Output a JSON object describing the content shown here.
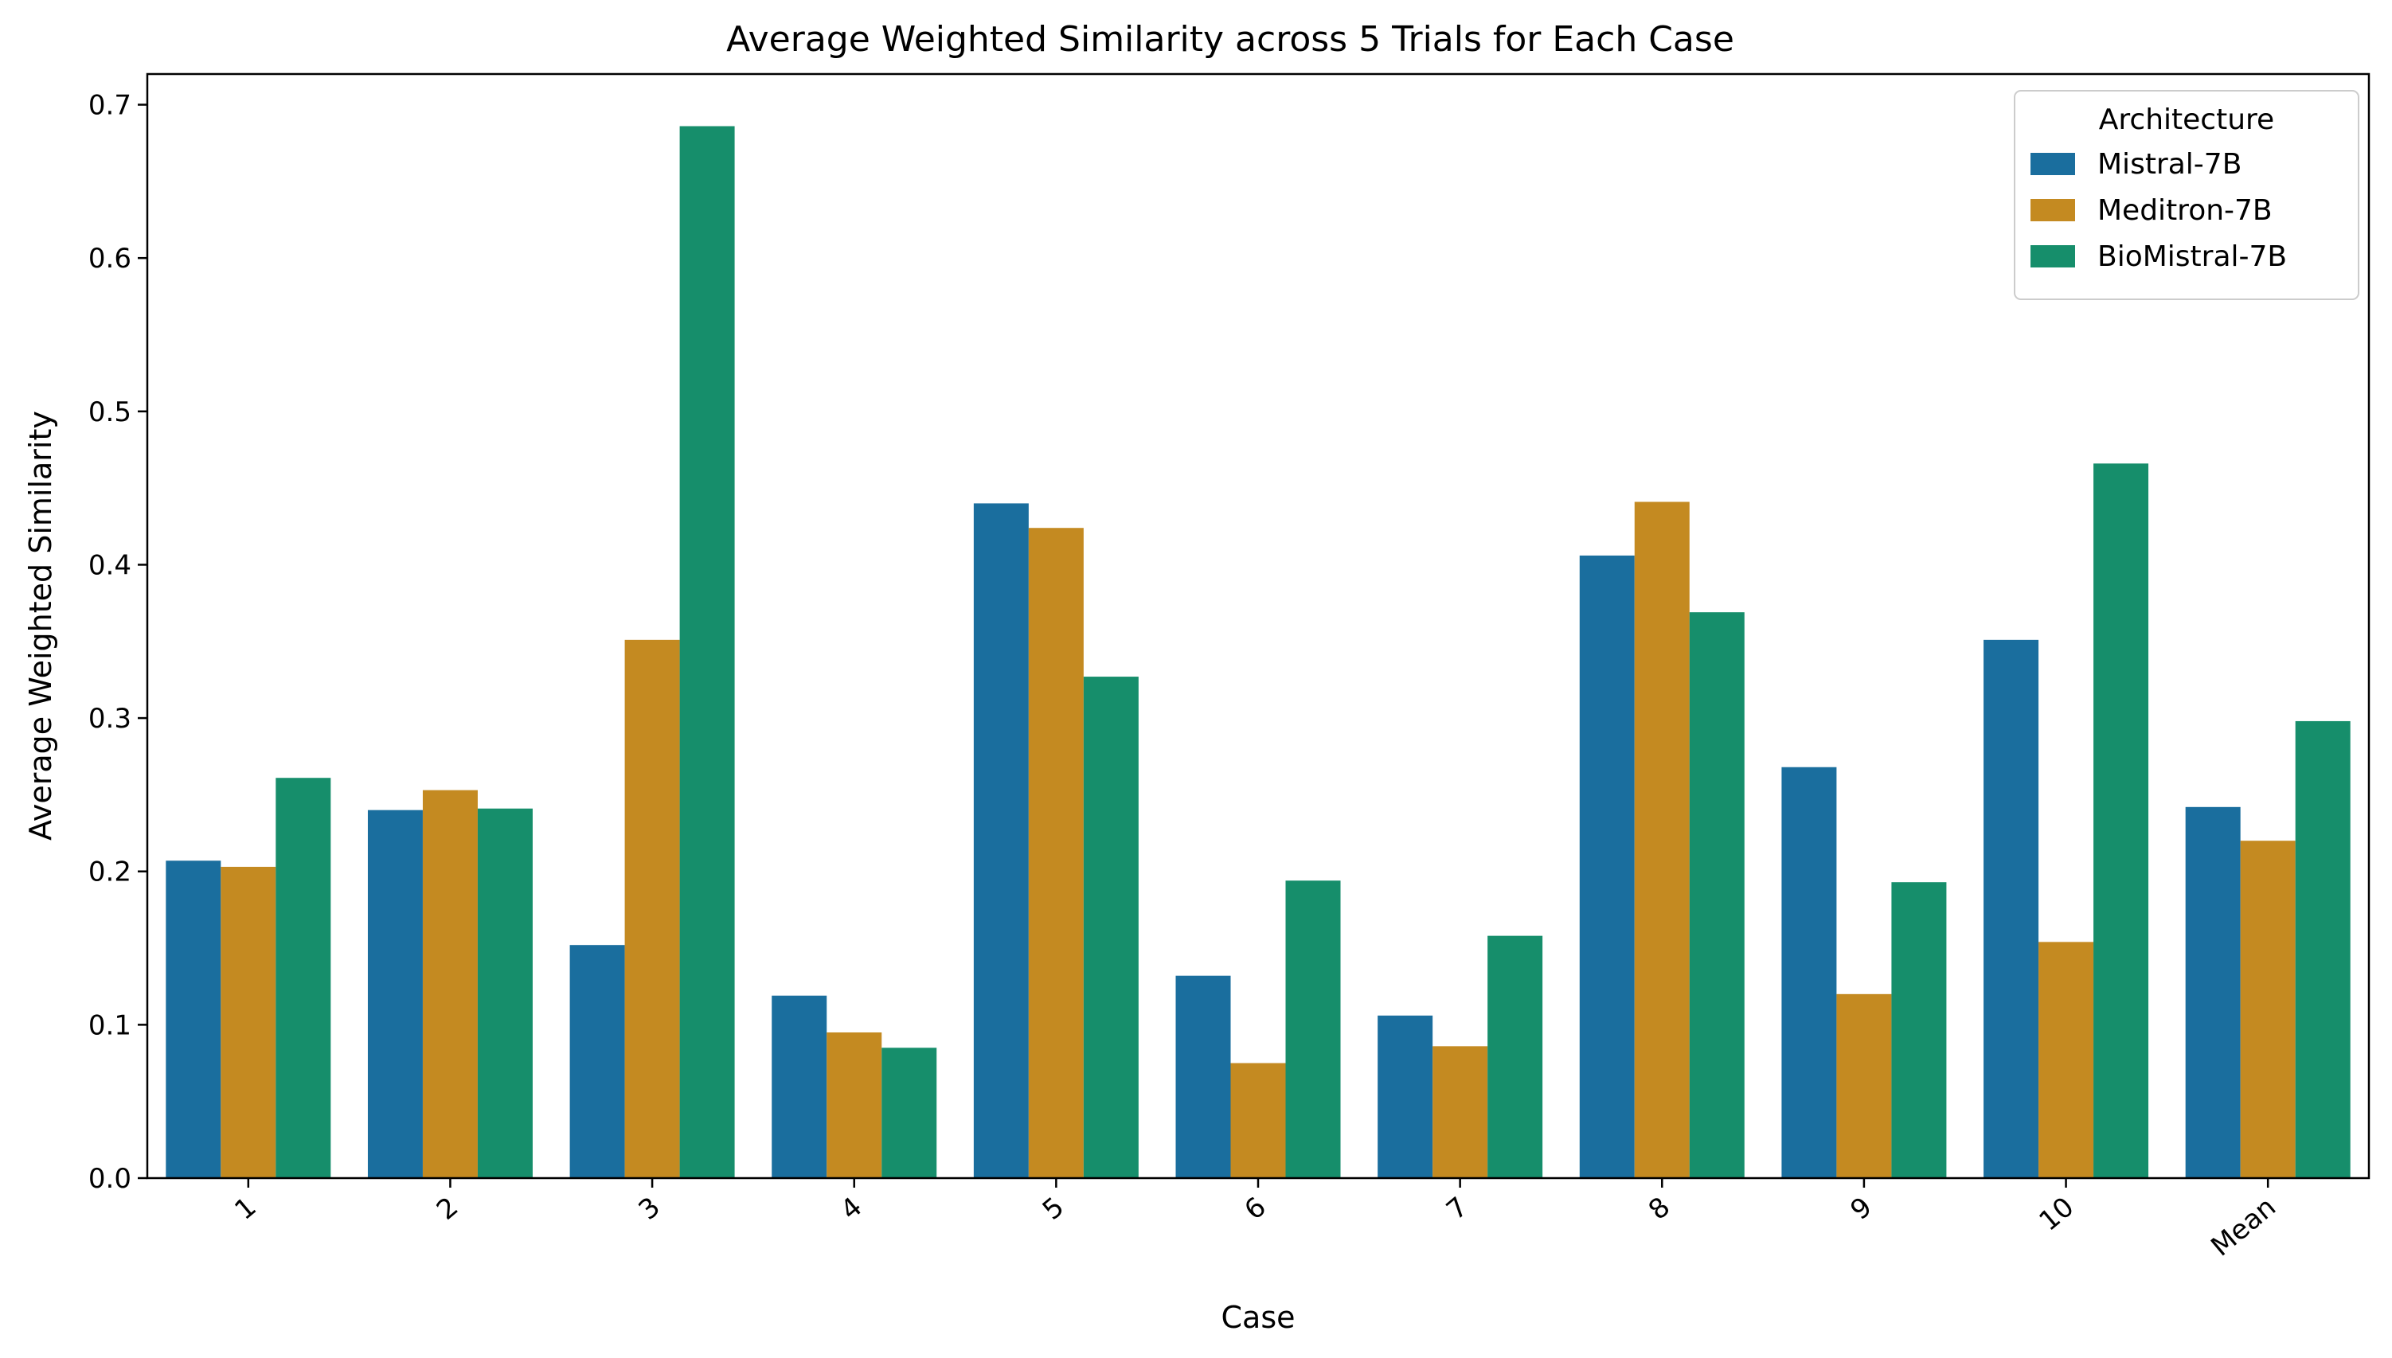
{
  "chart_data": {
    "type": "bar",
    "title": "Average Weighted Similarity across 5 Trials for Each Case",
    "xlabel": "Case",
    "ylabel": "Average Weighted Similarity",
    "categories": [
      "1",
      "2",
      "3",
      "4",
      "5",
      "6",
      "7",
      "8",
      "9",
      "10",
      "Mean"
    ],
    "ylim": [
      0,
      0.72
    ],
    "yticks": [
      0.0,
      0.1,
      0.2,
      0.3,
      0.4,
      0.5,
      0.6,
      0.7
    ],
    "ytick_labels": [
      "0.0",
      "0.1",
      "0.2",
      "0.3",
      "0.4",
      "0.5",
      "0.6",
      "0.7"
    ],
    "grid": false,
    "legend": {
      "title": "Architecture",
      "placement": "top-right"
    },
    "series": [
      {
        "name": "Mistral-7B",
        "color": "#1a6e9e",
        "values": [
          0.207,
          0.24,
          0.152,
          0.119,
          0.44,
          0.132,
          0.106,
          0.406,
          0.268,
          0.351,
          0.242
        ]
      },
      {
        "name": "Meditron-7B",
        "color": "#c48a21",
        "values": [
          0.203,
          0.253,
          0.351,
          0.095,
          0.424,
          0.075,
          0.086,
          0.441,
          0.12,
          0.154,
          0.22
        ]
      },
      {
        "name": "BioMistral-7B",
        "color": "#168e6b",
        "values": [
          0.261,
          0.241,
          0.686,
          0.085,
          0.327,
          0.194,
          0.158,
          0.369,
          0.193,
          0.466,
          0.298
        ]
      }
    ]
  }
}
